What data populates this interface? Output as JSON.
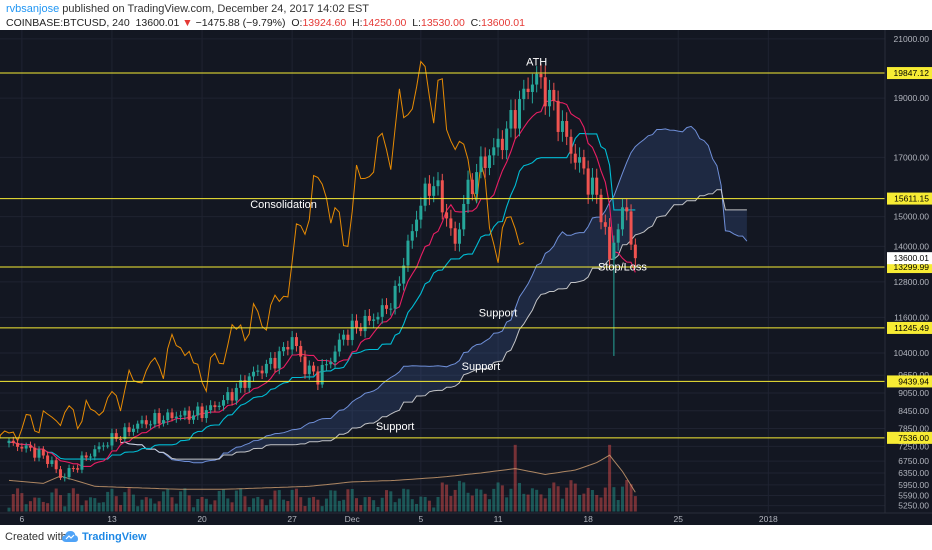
{
  "header": {
    "author": "rvbsanjose",
    "published_text": "published on TradingView.com, December 24, 2017 14:02 EST",
    "symbol": "COINBASE:BTCUSD, 240",
    "last": "13600.01",
    "change_arrow": "▼",
    "change": "−1475.88 (−9.79%)",
    "o_label": "O:",
    "o_value": "13924.60",
    "h_label": "H:",
    "h_value": "14250.00",
    "l_label": "L:",
    "l_value": "13530.00",
    "c_label": "C:",
    "c_value": "13600.01"
  },
  "footer": {
    "created_with": "Created with",
    "brand": "TradingView"
  },
  "colors": {
    "background": "#131722",
    "grid": "#1f2331",
    "up": "#26a69a",
    "down": "#ef5350",
    "tenkan": "#e91e63",
    "kijun": "#00bcd4",
    "rsi": "#ff9800",
    "span_b": "#e0e0e0",
    "cloud": "#3d5a98",
    "level": "#f7ec34"
  },
  "chart_data": {
    "type": "candlestick",
    "ylim": [
      5000,
      21300
    ],
    "x_ticks": [
      {
        "label": "6",
        "idx": 3
      },
      {
        "label": "13",
        "idx": 24
      },
      {
        "label": "20",
        "idx": 45
      },
      {
        "label": "27",
        "idx": 66
      },
      {
        "label": "Dec",
        "idx": 80
      },
      {
        "label": "5",
        "idx": 96
      },
      {
        "label": "11",
        "idx": 114
      },
      {
        "label": "18",
        "idx": 135
      },
      {
        "label": "25",
        "idx": 156
      },
      {
        "label": "2018",
        "idx": 177
      }
    ],
    "y_ticks": [
      {
        "label": "21000.00",
        "v": 21000
      },
      {
        "label": "19000.00",
        "v": 19000
      },
      {
        "label": "17000.00",
        "v": 17000
      },
      {
        "label": "15000.00",
        "v": 15000
      },
      {
        "label": "14000.00",
        "v": 14000
      },
      {
        "label": "12800.00",
        "v": 12800
      },
      {
        "label": "11600.00",
        "v": 11600
      },
      {
        "label": "10400.00",
        "v": 10400
      },
      {
        "label": "9650.00",
        "v": 9650
      },
      {
        "label": "9050.00",
        "v": 9050
      },
      {
        "label": "8450.00",
        "v": 8450
      },
      {
        "label": "7850.00",
        "v": 7850
      },
      {
        "label": "7250.00",
        "v": 7250
      },
      {
        "label": "6750.00",
        "v": 6750
      },
      {
        "label": "6350.00",
        "v": 6350
      },
      {
        "label": "5950.00",
        "v": 5950
      },
      {
        "label": "5590.00",
        "v": 5590
      },
      {
        "label": "5250.00",
        "v": 5250
      }
    ],
    "levels": [
      {
        "label": "19847.12",
        "v": 19847.12
      },
      {
        "label": "15611.15",
        "v": 15611.15
      },
      {
        "label": "13299.99",
        "v": 13299.99
      },
      {
        "label": "11245.49",
        "v": 11245.49
      },
      {
        "label": "9439.94",
        "v": 9439.94
      },
      {
        "label": "7536.00",
        "v": 7536.0
      }
    ],
    "last_price": {
      "label": "13600.01",
      "v": 13600.01
    },
    "annotations": [
      {
        "text": "ATH",
        "idx": 123,
        "v": 20100
      },
      {
        "text": "Consolidation",
        "idx": 64,
        "v": 15300
      },
      {
        "text": "Stop/Loss",
        "idx": 143,
        "v": 13180
      },
      {
        "text": "Support",
        "idx": 114,
        "v": 11630
      },
      {
        "text": "Support",
        "idx": 110,
        "v": 9820
      },
      {
        "text": "Support",
        "idx": 90,
        "v": 7800
      }
    ],
    "close_anchors": [
      [
        0,
        7350
      ],
      [
        4,
        7200
      ],
      [
        7,
        7000
      ],
      [
        10,
        6700
      ],
      [
        12,
        6200
      ],
      [
        15,
        6500
      ],
      [
        18,
        6900
      ],
      [
        21,
        7200
      ],
      [
        24,
        7500
      ],
      [
        27,
        7700
      ],
      [
        30,
        8000
      ],
      [
        33,
        8100
      ],
      [
        36,
        8200
      ],
      [
        39,
        8300
      ],
      [
        42,
        8300
      ],
      [
        45,
        8400
      ],
      [
        48,
        8600
      ],
      [
        51,
        8900
      ],
      [
        54,
        9300
      ],
      [
        57,
        9700
      ],
      [
        60,
        9950
      ],
      [
        63,
        10300
      ],
      [
        66,
        10900
      ],
      [
        69,
        9900
      ],
      [
        72,
        9600
      ],
      [
        75,
        10200
      ],
      [
        78,
        11000
      ],
      [
        81,
        11300
      ],
      [
        84,
        11500
      ],
      [
        87,
        11800
      ],
      [
        90,
        12300
      ],
      [
        92,
        13500
      ],
      [
        94,
        14500
      ],
      [
        96,
        15500
      ],
      [
        99,
        16200
      ],
      [
        102,
        15000
      ],
      [
        104,
        14000
      ],
      [
        106,
        15500
      ],
      [
        109,
        16500
      ],
      [
        112,
        17100
      ],
      [
        115,
        17600
      ],
      [
        118,
        18500
      ],
      [
        121,
        19400
      ],
      [
        123,
        19700
      ],
      [
        126,
        19000
      ],
      [
        129,
        18000
      ],
      [
        131,
        17200
      ],
      [
        133,
        16800
      ],
      [
        135,
        16200
      ],
      [
        137,
        15700
      ],
      [
        139,
        14500
      ],
      [
        140,
        13500
      ],
      [
        142,
        14800
      ],
      [
        144,
        15200
      ],
      [
        146,
        13600
      ]
    ],
    "volume_anchors": [
      [
        0,
        6100
      ],
      [
        8,
        6000
      ],
      [
        12,
        6250
      ],
      [
        20,
        5900
      ],
      [
        30,
        5850
      ],
      [
        40,
        5800
      ],
      [
        50,
        5800
      ],
      [
        60,
        5850
      ],
      [
        70,
        5900
      ],
      [
        80,
        6050
      ],
      [
        90,
        6100
      ],
      [
        100,
        6200
      ],
      [
        110,
        6350
      ],
      [
        118,
        6500
      ],
      [
        125,
        6300
      ],
      [
        132,
        6450
      ],
      [
        137,
        6700
      ],
      [
        140,
        6950
      ],
      [
        143,
        6400
      ],
      [
        146,
        5700
      ]
    ]
  }
}
